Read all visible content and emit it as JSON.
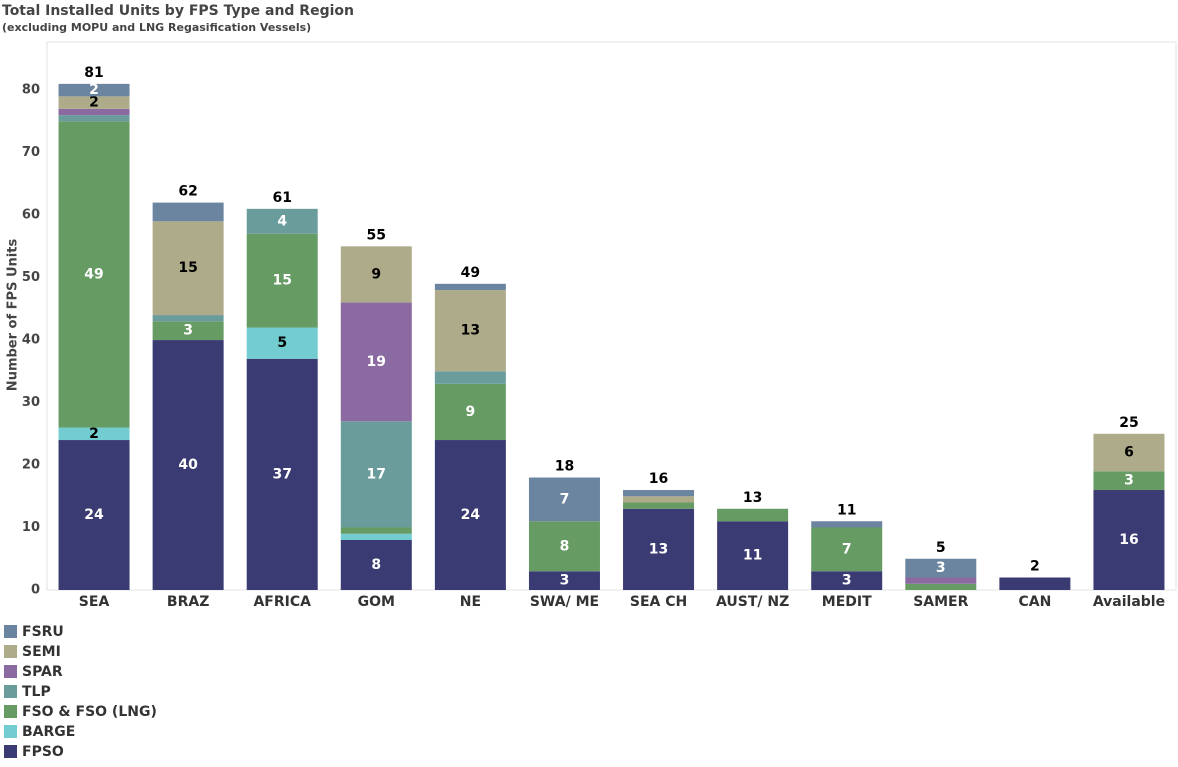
{
  "chart_data": {
    "type": "bar",
    "stacked": true,
    "title": "Total Installed Units by FPS Type and Region",
    "subtitle": "(excluding MOPU and LNG Regasification Vessels)",
    "y_label": "Number of FPS Units",
    "categories": [
      "SEA",
      "BRAZ",
      "AFRICA",
      "GOM",
      "NE",
      "SWA/ ME",
      "SEA CH",
      "AUST/ NZ",
      "MEDIT",
      "SAMER",
      "CAN",
      "Available"
    ],
    "series": [
      {
        "name": "FPSO",
        "color": "#3b3b73",
        "values": [
          24,
          40,
          37,
          8,
          24,
          3,
          13,
          11,
          3,
          0,
          2,
          16
        ],
        "value_labels": [
          "24",
          "40",
          "37",
          "8",
          "24",
          "3",
          "13",
          "11",
          "3",
          null,
          null,
          "16"
        ]
      },
      {
        "name": "BARGE",
        "color": "#72ccd0",
        "values": [
          2,
          0,
          5,
          1,
          0,
          0,
          0,
          0,
          0,
          0,
          0,
          0
        ],
        "value_labels": [
          "2",
          null,
          "5",
          null,
          null,
          null,
          null,
          null,
          null,
          null,
          null,
          null
        ]
      },
      {
        "name": "FSO & FSO (LNG)",
        "color": "#679b64",
        "values": [
          49,
          3,
          15,
          1,
          9,
          8,
          1,
          2,
          7,
          1,
          0,
          3
        ],
        "value_labels": [
          "49",
          "3",
          "15",
          null,
          "9",
          "8",
          null,
          null,
          "7",
          null,
          null,
          "3"
        ]
      },
      {
        "name": "TLP",
        "color": "#6a9c9c",
        "values": [
          1,
          1,
          4,
          17,
          2,
          0,
          0,
          0,
          0,
          0,
          0,
          0
        ],
        "value_labels": [
          null,
          null,
          "4",
          "17",
          null,
          null,
          null,
          null,
          null,
          null,
          null,
          null
        ]
      },
      {
        "name": "SPAR",
        "color": "#8a6aa0",
        "values": [
          1,
          0,
          0,
          19,
          0,
          0,
          0,
          0,
          0,
          1,
          0,
          0
        ],
        "value_labels": [
          null,
          null,
          null,
          "19",
          null,
          null,
          null,
          null,
          null,
          null,
          null,
          null
        ]
      },
      {
        "name": "SEMI",
        "color": "#aeab8a",
        "values": [
          2,
          15,
          0,
          9,
          13,
          0,
          1,
          0,
          0,
          0,
          0,
          6
        ],
        "value_labels": [
          "2",
          "15",
          null,
          "9",
          "13",
          null,
          null,
          null,
          null,
          null,
          null,
          "6"
        ]
      },
      {
        "name": "FSRU",
        "color": "#6b84a0",
        "values": [
          2,
          3,
          0,
          0,
          1,
          7,
          1,
          0,
          1,
          3,
          0,
          0
        ],
        "value_labels": [
          "2",
          null,
          null,
          null,
          null,
          "7",
          null,
          null,
          null,
          "3",
          null,
          null
        ]
      }
    ],
    "totals": [
      81,
      62,
      61,
      55,
      49,
      18,
      16,
      13,
      11,
      5,
      2,
      25
    ],
    "ylim": [
      0,
      87.7
    ],
    "yticks": [
      0,
      10,
      20,
      30,
      40,
      50,
      60,
      70,
      80
    ],
    "grid": false,
    "legend": "bottom-left"
  }
}
